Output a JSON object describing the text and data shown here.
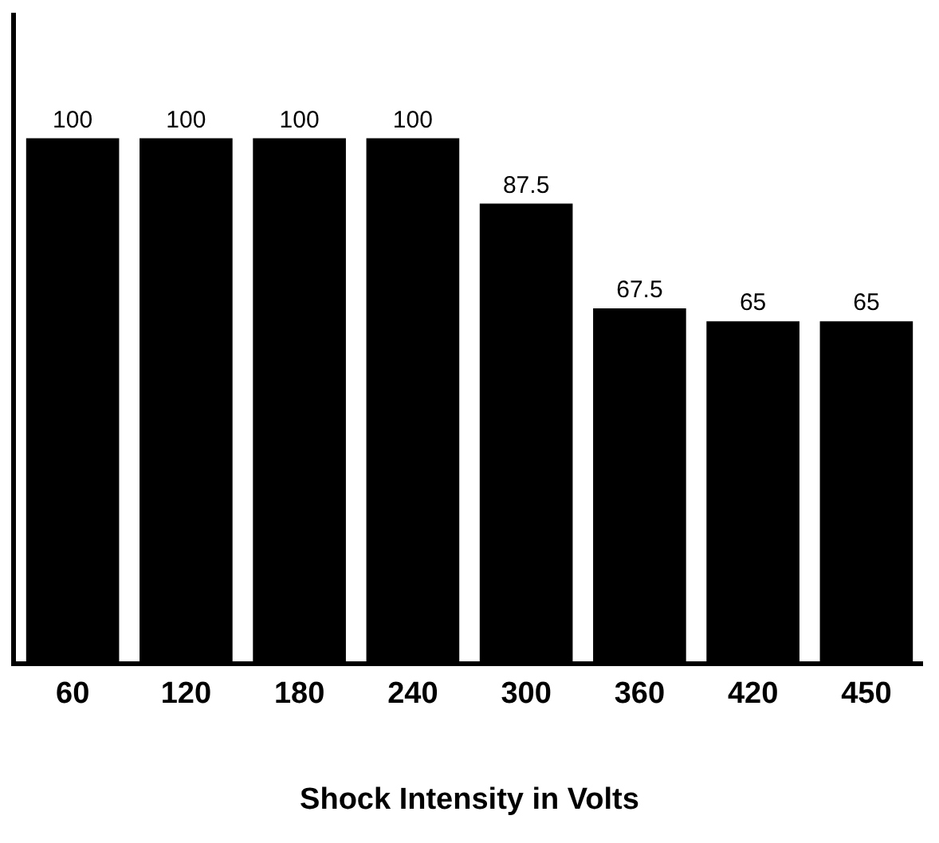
{
  "chart_data": {
    "type": "bar",
    "xlabel": "Shock Intensity in Volts",
    "categories": [
      "60",
      "120",
      "180",
      "240",
      "300",
      "360",
      "420",
      "450"
    ],
    "values": [
      100,
      100,
      100,
      100,
      87.5,
      67.5,
      65,
      65
    ],
    "color": "#000000",
    "data_labels": true,
    "ylim": [
      0,
      124
    ],
    "tick_labels": "x",
    "grid": false,
    "legend": false
  }
}
